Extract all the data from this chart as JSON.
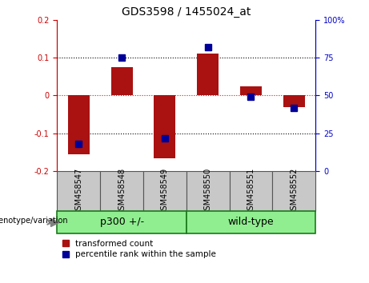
{
  "title": "GDS3598 / 1455024_at",
  "samples": [
    "GSM458547",
    "GSM458548",
    "GSM458549",
    "GSM458550",
    "GSM458551",
    "GSM458552"
  ],
  "red_values": [
    -0.155,
    0.075,
    -0.165,
    0.11,
    0.025,
    -0.03
  ],
  "blue_values_pct": [
    18,
    75,
    22,
    82,
    49,
    42
  ],
  "groups": [
    {
      "label": "p300 +/-",
      "indices": [
        0,
        1,
        2
      ]
    },
    {
      "label": "wild-type",
      "indices": [
        3,
        4,
        5
      ]
    }
  ],
  "ylim_left": [
    -0.2,
    0.2
  ],
  "ylim_right": [
    0,
    100
  ],
  "bar_width": 0.5,
  "blue_marker_size": 6,
  "red_color": "#AA1111",
  "blue_color": "#000099",
  "group_bg_color": "#90EE90",
  "tick_bg_color": "#C8C8C8",
  "legend_red_label": "transformed count",
  "legend_blue_label": "percentile rank within the sample",
  "genotype_label": "genotype/variation",
  "ylabel_left_color": "#CC0000",
  "ylabel_right_color": "#0000CC",
  "title_fontsize": 10,
  "tick_label_fontsize": 7,
  "group_label_fontsize": 9,
  "legend_fontsize": 7.5
}
